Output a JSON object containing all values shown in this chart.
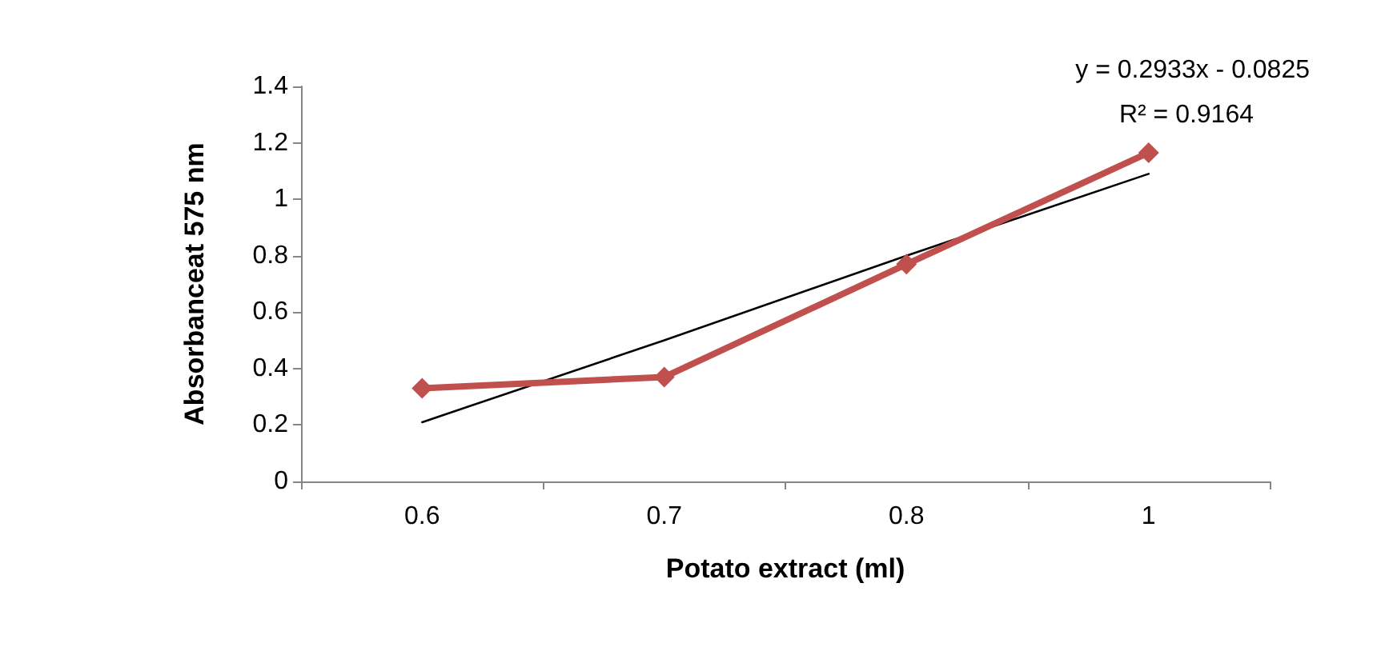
{
  "chart_data": {
    "type": "line",
    "xlabel": "Potato extract (ml)",
    "ylabel": "Absorbanceat 575 nm",
    "categories": [
      "0.6",
      "0.7",
      "0.8",
      "1"
    ],
    "series": [
      {
        "color": "#c0504d",
        "values": [
          0.33,
          0.37,
          0.77,
          1.165
        ],
        "marker": "diamond"
      },
      {
        "color": "#000000",
        "values": [
          0.21,
          0.5,
          0.8,
          1.09
        ],
        "marker": "none"
      }
    ],
    "ylim": [
      0,
      1.4
    ],
    "yticks": [
      0,
      0.2,
      0.4,
      0.6,
      0.8,
      1,
      1.2,
      1.4
    ],
    "grid": false,
    "annotations": [
      "y = 0.2933x - 0.0825",
      "R² = 0.9164"
    ]
  }
}
